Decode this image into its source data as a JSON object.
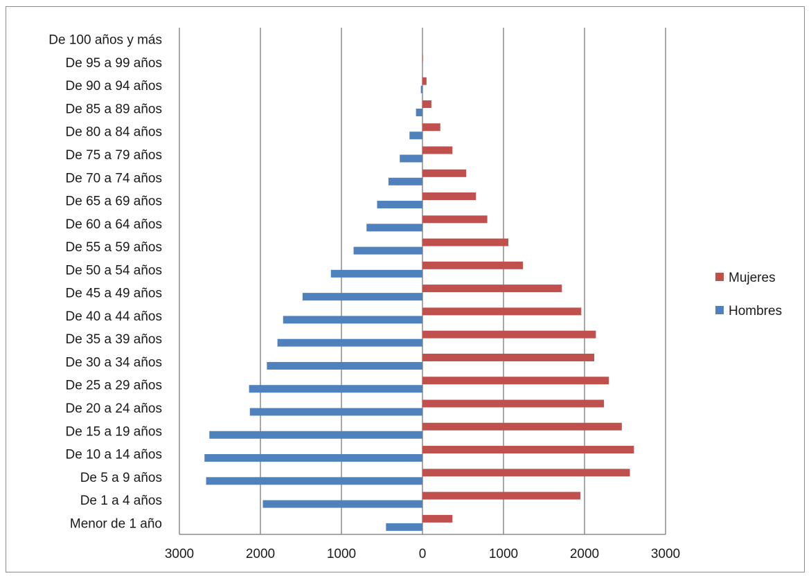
{
  "chart_data": {
    "type": "bar",
    "orientation": "horizontal",
    "layout": "population-pyramid",
    "categories": [
      "Menor de 1 año",
      "De 1 a 4 años",
      "De 5 a 9 años",
      "De 10 a 14 años",
      "De 15 a 19 años",
      "De 20 a 24 años",
      "De 25 a 29 años",
      "De 30 a 34 años",
      "De 35 a 39 años",
      "De 40 a 44 años",
      "De 45 a 49 años",
      "De 50 a 54 años",
      "De 55 a 59 años",
      "De 60 a 64 años",
      "De 65 a 69 años",
      "De 70 a 74 años",
      "De 75 a 79 años",
      "De 80 a 84 años",
      "De 85 a 89 años",
      "De 90 a 94 años",
      "De 95 a 99 años",
      "De 100 años y más"
    ],
    "series": [
      {
        "name": "Mujeres",
        "color": "#c0504d",
        "values": [
          370,
          1950,
          2560,
          2610,
          2460,
          2240,
          2300,
          2120,
          2140,
          1960,
          1720,
          1240,
          1060,
          800,
          660,
          540,
          370,
          220,
          110,
          50,
          5,
          0
        ]
      },
      {
        "name": "Hombres",
        "color": "#4f81bd",
        "values": [
          -450,
          -1970,
          -2670,
          -2690,
          -2630,
          -2130,
          -2140,
          -1920,
          -1790,
          -1720,
          -1480,
          -1130,
          -850,
          -690,
          -560,
          -420,
          -280,
          -160,
          -80,
          -20,
          0,
          0
        ]
      }
    ],
    "xlim": [
      -3000,
      3000
    ],
    "xticks": [
      -3000,
      -2000,
      -1000,
      0,
      1000,
      2000,
      3000
    ],
    "xtick_labels": [
      "3000",
      "2000",
      "1000",
      "0",
      "1000",
      "2000",
      "3000"
    ],
    "grid": "vertical",
    "legend_position": "right"
  }
}
